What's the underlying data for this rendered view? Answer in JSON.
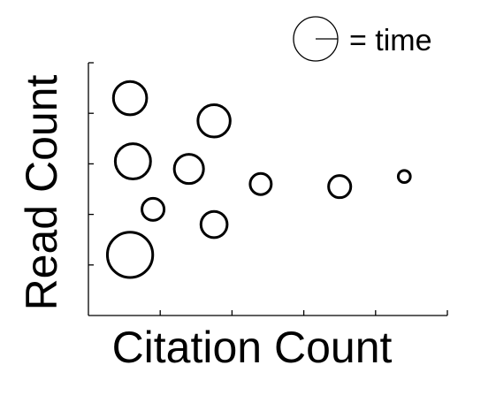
{
  "chart_data": {
    "type": "scatter",
    "encoding": "bubble",
    "title": "",
    "xlabel": "Citation Count",
    "ylabel": "Read Count",
    "xlim": [
      0,
      5
    ],
    "ylim": [
      0,
      5
    ],
    "x_ticks": [
      1,
      2,
      3,
      4,
      5
    ],
    "y_ticks": [
      1,
      2,
      3,
      4,
      5
    ],
    "show_tick_labels": false,
    "grid": false,
    "legend": {
      "label": "= time",
      "placement": "top-right",
      "meaning": "bubble size"
    },
    "points": [
      {
        "x": 0.58,
        "y": 4.3,
        "size": 3.3
      },
      {
        "x": 1.75,
        "y": 3.85,
        "size": 3.2
      },
      {
        "x": 0.62,
        "y": 3.05,
        "size": 3.5
      },
      {
        "x": 1.4,
        "y": 2.9,
        "size": 2.9
      },
      {
        "x": 2.4,
        "y": 2.6,
        "size": 2.1
      },
      {
        "x": 3.5,
        "y": 2.55,
        "size": 2.2
      },
      {
        "x": 4.4,
        "y": 2.75,
        "size": 1.2
      },
      {
        "x": 0.9,
        "y": 2.1,
        "size": 2.2
      },
      {
        "x": 1.75,
        "y": 1.8,
        "size": 2.6
      },
      {
        "x": 0.58,
        "y": 1.2,
        "size": 4.5
      }
    ],
    "colors": {
      "stroke": "#000000",
      "fill": "#ffffff"
    }
  }
}
